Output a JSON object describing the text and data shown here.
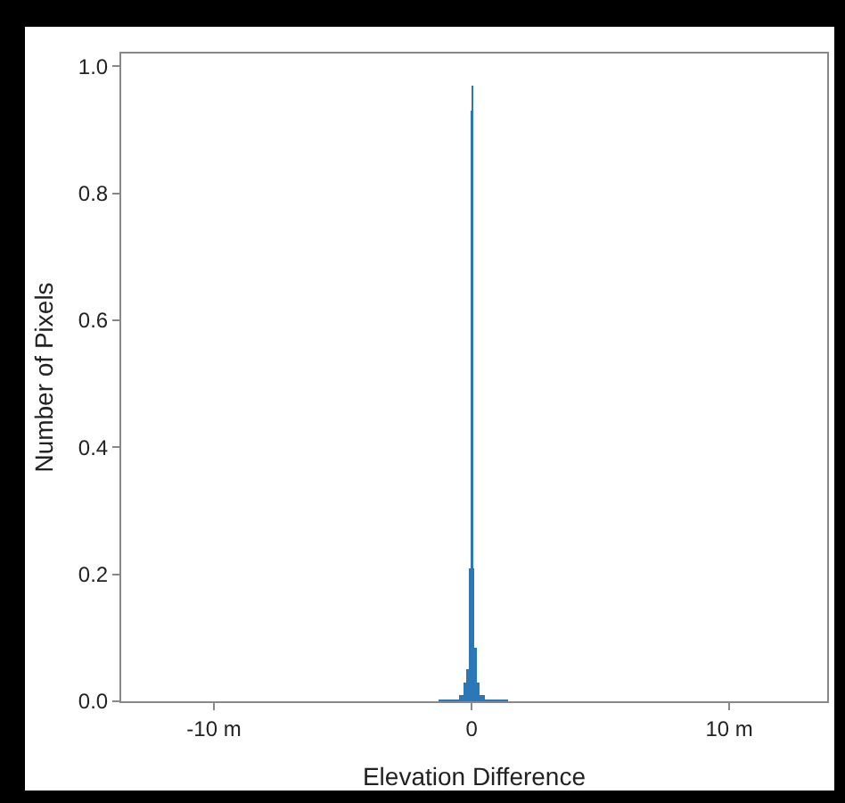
{
  "chart_data": {
    "type": "histogram",
    "xlabel": "Elevation Difference",
    "ylabel": "Number of Pixels",
    "color": "#2a78b8",
    "bins": [
      -1.3,
      -0.5,
      -0.3,
      -0.2,
      -0.1,
      -0.05,
      0,
      0.05,
      0.1,
      0.2,
      0.3,
      0.5,
      1.4
    ],
    "values": [
      0.003,
      0.01,
      0.03,
      0.05,
      0.21,
      0.93,
      0.97,
      0.21,
      0.085,
      0.03,
      0.01,
      0.003
    ],
    "xlim": [
      -13.6,
      13.8
    ],
    "xticks": [
      {
        "value": -10,
        "label": "-10 m"
      },
      {
        "value": 0,
        "label": "0"
      },
      {
        "value": 10,
        "label": "10 m"
      }
    ],
    "ylim": [
      0,
      1.02
    ],
    "yticks": [
      {
        "value": 0,
        "label": "0.0"
      },
      {
        "value": 0.2,
        "label": "0.2"
      },
      {
        "value": 0.4,
        "label": "0.4"
      },
      {
        "value": 0.6,
        "label": "0.6"
      },
      {
        "value": 0.8,
        "label": "0.8"
      },
      {
        "value": 1,
        "label": "1.0"
      }
    ],
    "grid": false
  }
}
